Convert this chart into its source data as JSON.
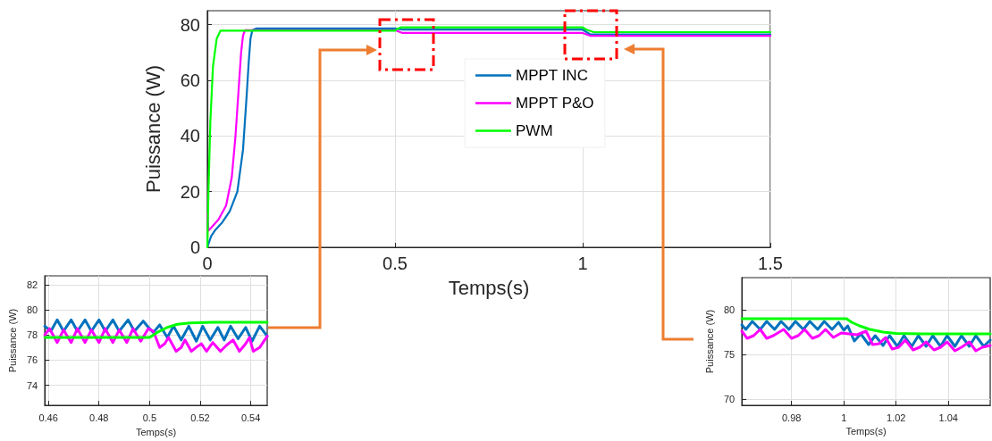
{
  "chart_data": [
    {
      "type": "line",
      "xlabel": "Temps(s)",
      "ylabel": "Puissance (W)",
      "xlim": [
        0,
        1.5
      ],
      "xticks": [
        0,
        0.5,
        1,
        1.5
      ],
      "ylim": [
        0,
        85
      ],
      "yticks": [
        0,
        20,
        40,
        60,
        80
      ],
      "grid": true,
      "legend": "top right",
      "marker": "none",
      "line_style": "solid",
      "series": [
        {
          "name": "MPPT INC",
          "color": "#0072bd",
          "x": [
            0,
            0.01,
            0.02,
            0.04,
            0.06,
            0.08,
            0.095,
            0.105,
            0.11,
            0.115,
            0.12,
            0.13,
            0.5,
            0.52,
            1.0,
            1.02,
            1.5
          ],
          "values": [
            0,
            4,
            6,
            9,
            13,
            20,
            35,
            55,
            66,
            75,
            78,
            78.6,
            78.6,
            78.2,
            78.2,
            76.5,
            76.5
          ]
        },
        {
          "name": "MPPT P&O",
          "color": "#ff00ff",
          "x": [
            0,
            0.003,
            0.01,
            0.03,
            0.05,
            0.065,
            0.075,
            0.085,
            0.09,
            0.095,
            0.1,
            0.5,
            0.52,
            1.0,
            1.02,
            1.5
          ],
          "values": [
            12,
            6,
            7,
            10,
            15,
            25,
            40,
            60,
            70,
            76,
            78,
            78,
            77,
            77,
            76,
            76
          ]
        },
        {
          "name": "PWM",
          "color": "#00ff00",
          "x": [
            0,
            0.003,
            0.008,
            0.015,
            0.025,
            0.035,
            0.04,
            0.5,
            0.505,
            0.515,
            1.0,
            1.01,
            1.03,
            1.5
          ],
          "values": [
            0,
            20,
            45,
            65,
            75,
            77.8,
            77.8,
            77.8,
            78.4,
            79,
            79,
            78.2,
            77.3,
            77.3
          ]
        }
      ]
    },
    {
      "type": "line",
      "xlabel": "Temps(s)",
      "ylabel": "Puissance (W)",
      "xlim": [
        0.4586,
        0.5465
      ],
      "xticks": [
        0.46,
        0.48,
        0.5,
        0.52,
        0.54
      ],
      "ylim": [
        72.4,
        82.7
      ],
      "yticks": [
        74,
        76,
        78,
        80,
        82
      ],
      "grid": true,
      "legend": false,
      "marker": "none",
      "line_style": "solid",
      "series": [
        {
          "color": "#0072bd",
          "x": [
            0.4586,
            0.461,
            0.4635,
            0.466,
            0.469,
            0.4715,
            0.4745,
            0.477,
            0.48,
            0.4825,
            0.4855,
            0.488,
            0.4915,
            0.494,
            0.4975,
            0.5,
            0.5015,
            0.504,
            0.507,
            0.5095,
            0.5125,
            0.5155,
            0.5185,
            0.521,
            0.524,
            0.527,
            0.5295,
            0.532,
            0.535,
            0.538,
            0.5405,
            0.5435,
            0.5465
          ],
          "values": [
            78.7,
            78.3,
            79.2,
            78.3,
            79.2,
            78.3,
            79.2,
            78.3,
            79.2,
            78.3,
            79.2,
            78.3,
            79.2,
            78.3,
            79.1,
            78.5,
            78.2,
            78.8,
            77.8,
            78.7,
            77.6,
            78.7,
            77.5,
            78.7,
            77.6,
            78.6,
            77.6,
            78.7,
            77.7,
            78.6,
            77.5,
            78.7,
            77.9
          ]
        },
        {
          "color": "#ff00ff",
          "x": [
            0.4586,
            0.4605,
            0.4635,
            0.466,
            0.469,
            0.4715,
            0.4745,
            0.477,
            0.48,
            0.4825,
            0.4855,
            0.488,
            0.491,
            0.4935,
            0.4965,
            0.4995,
            0.5015,
            0.504,
            0.506,
            0.5075,
            0.5105,
            0.5125,
            0.514,
            0.5165,
            0.519,
            0.5205,
            0.5225,
            0.525,
            0.528,
            0.5305,
            0.533,
            0.5355,
            0.538,
            0.5395,
            0.541,
            0.5435,
            0.5465
          ],
          "values": [
            78,
            78.5,
            77.4,
            78.4,
            77.4,
            78.5,
            77.4,
            78.4,
            77.4,
            78.5,
            77.4,
            78.4,
            77.4,
            78.5,
            77.5,
            78.5,
            78.3,
            77,
            77.3,
            77.8,
            76.7,
            77,
            77.6,
            76.7,
            77.1,
            77.3,
            76.7,
            77.4,
            76.7,
            77.2,
            77.6,
            76.7,
            77.3,
            77.8,
            76.7,
            77,
            77.9
          ]
        },
        {
          "color": "#00ff00",
          "x": [
            0.4586,
            0.5,
            0.503,
            0.507,
            0.511,
            0.516,
            0.525,
            0.5465
          ],
          "values": [
            77.8,
            77.8,
            78.2,
            78.6,
            78.85,
            78.95,
            79,
            79
          ]
        }
      ]
    },
    {
      "type": "line",
      "xlabel": "Temps(s)",
      "ylabel": "Puissance (W)",
      "xlim": [
        0.961,
        1.056
      ],
      "xticks": [
        0.98,
        1,
        1.02,
        1.04
      ],
      "ylim": [
        69.3,
        83.6
      ],
      "yticks": [
        70,
        75,
        80
      ],
      "grid": true,
      "legend": false,
      "marker": "none",
      "line_style": "solid",
      "series": [
        {
          "color": "#0072bd",
          "x": [
            0.961,
            0.9625,
            0.965,
            0.968,
            0.9705,
            0.9735,
            0.976,
            0.979,
            0.9815,
            0.9845,
            0.987,
            0.99,
            0.9925,
            0.9955,
            0.998,
            1.0,
            1.0015,
            1.004,
            1.0065,
            1.0095,
            1.012,
            1.015,
            1.0175,
            1.0205,
            1.023,
            1.026,
            1.0285,
            1.0315,
            1.034,
            1.037,
            1.0395,
            1.0425,
            1.045,
            1.048,
            1.0505,
            1.0535,
            1.056
          ],
          "values": [
            78.3,
            77.8,
            78.7,
            77.8,
            78.7,
            77.8,
            78.7,
            77.8,
            78.7,
            77.8,
            78.7,
            77.8,
            78.7,
            77.8,
            78.6,
            77.7,
            78.2,
            76.5,
            77.3,
            76.1,
            77.1,
            76,
            77.1,
            75.9,
            77.1,
            75.9,
            77.1,
            75.9,
            77.1,
            75.9,
            77.1,
            75.9,
            77.1,
            75.9,
            77.1,
            75.9,
            76.6
          ]
        },
        {
          "color": "#ff00ff",
          "x": [
            0.961,
            0.963,
            0.9655,
            0.968,
            0.9705,
            0.973,
            0.977,
            0.98,
            0.9825,
            0.985,
            0.988,
            0.9905,
            0.993,
            0.996,
            0.999,
            1.002,
            1.005,
            1.0085,
            1.011,
            1.0135,
            1.016,
            1.0185,
            1.021,
            1.0235,
            1.0265,
            1.029,
            1.0315,
            1.0345,
            1.037,
            1.0395,
            1.0425,
            1.045,
            1.048,
            1.0505,
            1.053,
            1.056
          ],
          "values": [
            77.6,
            76.8,
            77.1,
            77.8,
            76.8,
            77.1,
            77.8,
            76.8,
            77.1,
            77.8,
            76.8,
            77.1,
            77.8,
            76.9,
            77.4,
            77.3,
            77.2,
            77.6,
            76.1,
            76.2,
            76.9,
            75.6,
            75.8,
            76.6,
            75.5,
            75.8,
            76.4,
            75.5,
            75.8,
            76.4,
            75.4,
            75.8,
            76.4,
            75.4,
            75.8,
            76
          ]
        },
        {
          "color": "#00ff00",
          "x": [
            0.961,
            1.001,
            1.003,
            1.006,
            1.01,
            1.015,
            1.02,
            1.03,
            1.056
          ],
          "values": [
            79,
            79,
            78.6,
            78.2,
            77.8,
            77.5,
            77.35,
            77.3,
            77.3
          ]
        }
      ]
    }
  ]
}
